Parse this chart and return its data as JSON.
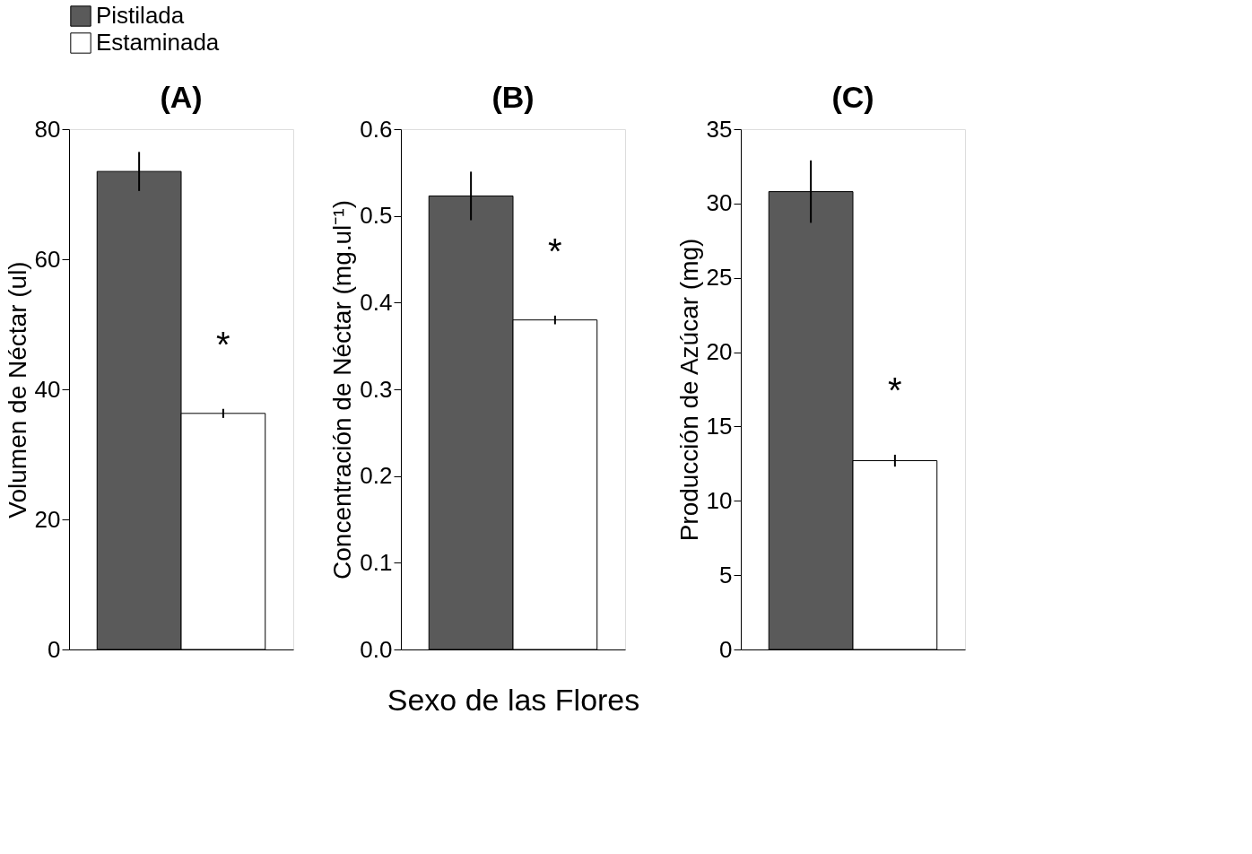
{
  "chart_data": [
    {
      "type": "bar",
      "title": "(A)",
      "ylabel": "Volumen de Néctar (ul)",
      "categories": [
        null
      ],
      "tick_labels": "y",
      "legend": "top",
      "ylim": [
        0,
        80
      ],
      "yticks": [
        0,
        20,
        40,
        60,
        80
      ],
      "annotations": [
        "*"
      ],
      "series": [
        {
          "name": "Pistilada",
          "color": "#5a5a5a",
          "values": [
            73.5
          ],
          "errors": [
            3
          ]
        },
        {
          "name": "Estaminada",
          "color": "#ffffff",
          "values": [
            36.3
          ],
          "errors": [
            0.7
          ]
        }
      ]
    },
    {
      "type": "bar",
      "title": "(B)",
      "ylabel": "Concentración de Néctar (mg.ul⁻¹)",
      "xlabel": "Sexo de las Flores",
      "categories": [
        null
      ],
      "tick_labels": "y",
      "ylim": [
        0,
        0.6
      ],
      "yticks": [
        {
          "value": 0,
          "label": "0.0"
        },
        0.1,
        0.2,
        0.3,
        0.4,
        0.5,
        0.6
      ],
      "annotations": [
        "*"
      ],
      "series": [
        {
          "name": "Pistilada",
          "color": "#5a5a5a",
          "values": [
            0.523
          ],
          "errors": [
            0.028
          ]
        },
        {
          "name": "Estaminada",
          "color": "#ffffff",
          "values": [
            0.38
          ],
          "errors": [
            0.005
          ]
        }
      ]
    },
    {
      "type": "bar",
      "title": "(C)",
      "ylabel": "Producción de Azúcar (mg)",
      "categories": [
        null
      ],
      "tick_labels": "y",
      "ylim": [
        0,
        35
      ],
      "yticks": [
        0,
        5,
        10,
        15,
        20,
        25,
        30,
        35
      ],
      "annotations": [
        "*"
      ],
      "series": [
        {
          "name": "Pistilada",
          "color": "#5a5a5a",
          "values": [
            30.8
          ],
          "errors": [
            2.1
          ]
        },
        {
          "name": "Estaminada",
          "color": "#ffffff",
          "values": [
            12.7
          ],
          "errors": [
            0.4
          ]
        }
      ]
    }
  ]
}
